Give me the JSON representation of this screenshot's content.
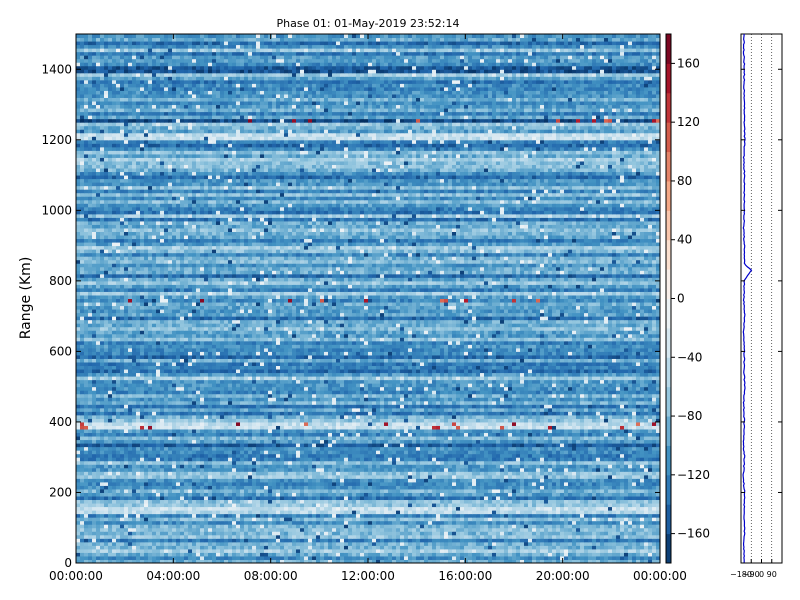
{
  "chart_data": [
    {
      "type": "heatmap",
      "title": "Phase 01: 01-May-2019 23:52:14",
      "xlabel": "",
      "ylabel": "Range (Km)",
      "x_ticks": [
        "00:00:00",
        "04:00:00",
        "08:00:00",
        "12:00:00",
        "16:00:00",
        "20:00:00",
        "00:00:00"
      ],
      "xlim_hours": [
        0,
        24
      ],
      "y_ticks": [
        0,
        200,
        400,
        600,
        800,
        1000,
        1200,
        1400
      ],
      "ylim": [
        0,
        1500
      ],
      "colormap": "RdBu_r",
      "colorbar": {
        "range": [
          -180,
          180
        ],
        "ticks": [
          -160,
          -120,
          -80,
          -40,
          0,
          40,
          80,
          120,
          160
        ]
      },
      "value_summary": {
        "typical_range": [
          -140,
          -60
        ],
        "bright_bands_km": [
          150,
          390,
          1210
        ],
        "dark_bands_km": [
          335,
          1255,
          1400
        ],
        "sporadic_positive_peaks_km": [
          390,
          745,
          1255
        ]
      },
      "grid": false
    },
    {
      "type": "line",
      "title": "",
      "xlabel": "",
      "ylabel": "",
      "x_ticks": [
        "−180",
        "−90",
        "0",
        "90"
      ],
      "xlim": [
        -180,
        180
      ],
      "ylim": [
        0,
        1500
      ],
      "y_ticks": [
        0,
        200,
        400,
        600,
        800,
        1000,
        1200,
        1400
      ],
      "vertical_dotted_lines": [
        -90,
        0,
        90
      ],
      "series": [
        {
          "color": "#0000cc",
          "profile": {
            "range_km": [
              0,
              50,
              100,
              150,
              200,
              250,
              300,
              335,
              400,
              450,
              500,
              550,
              600,
              650,
              700,
              750,
              800,
              830,
              850,
              900,
              950,
              1000,
              1050,
              1100,
              1150,
              1200,
              1255,
              1300,
              1350,
              1400,
              1450,
              1500
            ],
            "value": [
              -150,
              -155,
              -148,
              -152,
              -150,
              -160,
              -149,
              -160,
              -151,
              -156,
              -148,
              -154,
              -150,
              -158,
              -149,
              -155,
              -150,
              -90,
              -152,
              -150,
              -157,
              -149,
              -153,
              -150,
              -156,
              -148,
              -152,
              -149,
              -154,
              -150,
              -156,
              -152
            ]
          }
        }
      ]
    }
  ]
}
